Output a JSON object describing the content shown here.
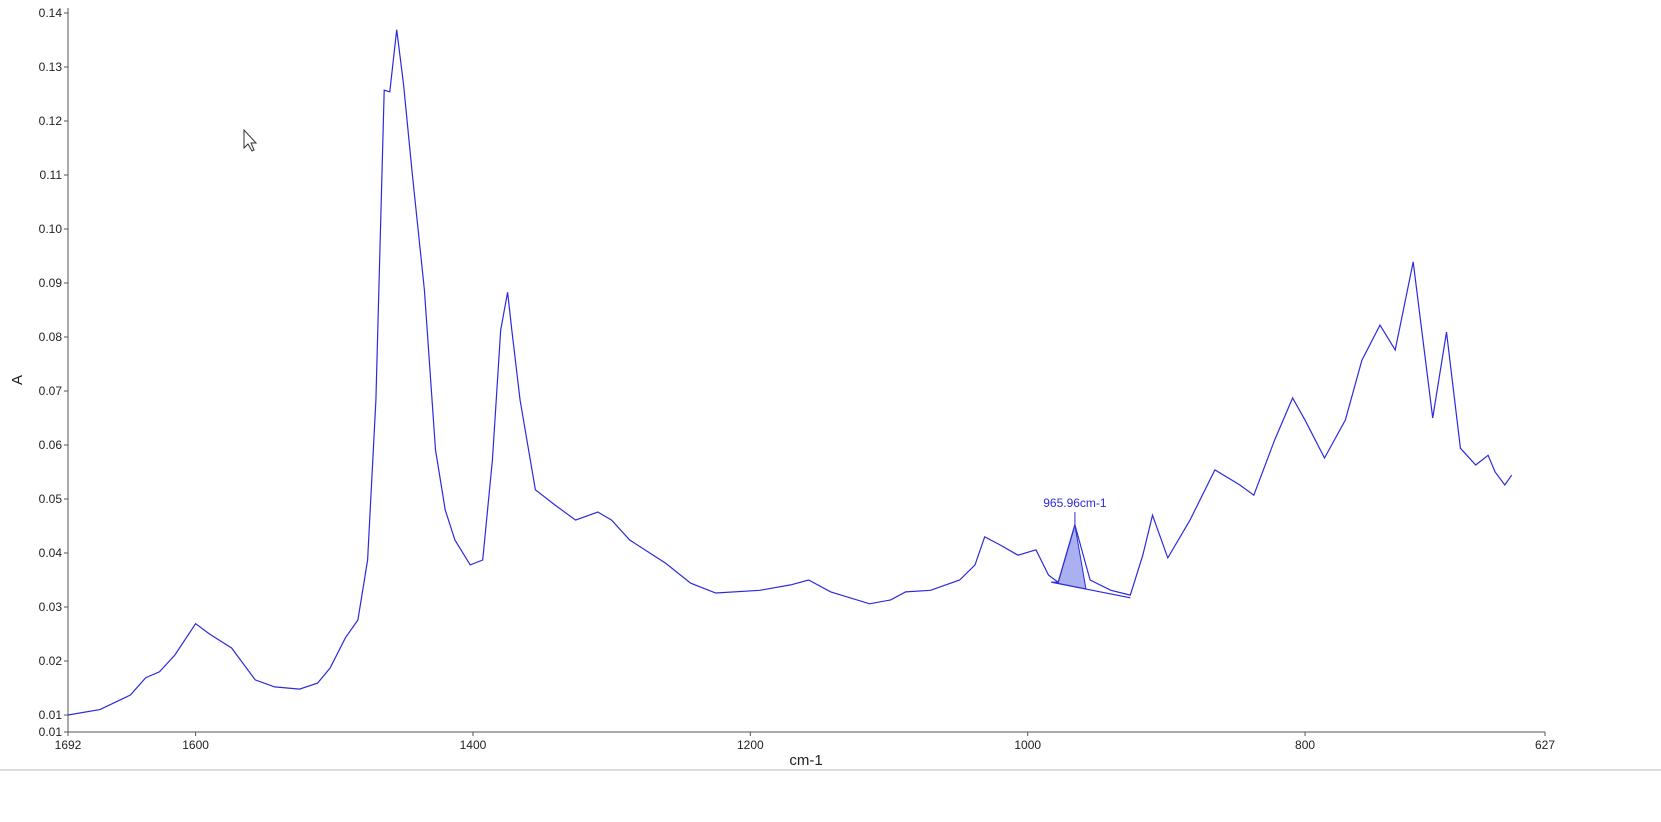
{
  "chart_data": {
    "type": "line",
    "x_label": "cm-1",
    "y_label": "A",
    "color": "#2b2bdc",
    "x": [
      1692,
      1669,
      1647,
      1636,
      1626,
      1615,
      1600,
      1590,
      1574,
      1557,
      1543,
      1525,
      1512,
      1503,
      1492,
      1483,
      1476,
      1470,
      1464,
      1460,
      1455,
      1450,
      1444,
      1435,
      1427,
      1420,
      1413,
      1402,
      1393,
      1386,
      1380,
      1375,
      1372,
      1366,
      1355,
      1341,
      1326,
      1310,
      1300,
      1287,
      1261,
      1243,
      1225,
      1193,
      1171,
      1158,
      1142,
      1114,
      1099,
      1088,
      1070,
      1049,
      1038,
      1031,
      1020,
      1007,
      994,
      985,
      978,
      966,
      955,
      940,
      926,
      917,
      910,
      899,
      883,
      865,
      847,
      837,
      822,
      809,
      800,
      786,
      771,
      759,
      746,
      735,
      722,
      708,
      698,
      688,
      677,
      668,
      663,
      656,
      651
    ],
    "values": [
      0.01,
      0.011,
      0.0137,
      0.0169,
      0.018,
      0.0211,
      0.0269,
      0.025,
      0.0224,
      0.0165,
      0.0152,
      0.0148,
      0.0159,
      0.0187,
      0.0243,
      0.0276,
      0.0387,
      0.0683,
      0.1257,
      0.1254,
      0.1369,
      0.1267,
      0.1109,
      0.0887,
      0.0591,
      0.048,
      0.0424,
      0.0378,
      0.0387,
      0.0572,
      0.0813,
      0.0883,
      0.0813,
      0.0683,
      0.0517,
      0.0489,
      0.0461,
      0.0476,
      0.0461,
      0.0424,
      0.0381,
      0.0344,
      0.0326,
      0.0331,
      0.0341,
      0.035,
      0.0328,
      0.0306,
      0.0313,
      0.0328,
      0.0331,
      0.035,
      0.0378,
      0.043,
      0.0415,
      0.0396,
      0.0406,
      0.0359,
      0.0346,
      0.0452,
      0.035,
      0.0331,
      0.0322,
      0.0396,
      0.047,
      0.0391,
      0.0461,
      0.0554,
      0.0526,
      0.0507,
      0.0609,
      0.0687,
      0.0646,
      0.0576,
      0.0646,
      0.0757,
      0.0822,
      0.0776,
      0.0939,
      0.065,
      0.0809,
      0.0594,
      0.0563,
      0.0581,
      0.055,
      0.0526,
      0.0544
    ],
    "xlim": [
      1692,
      627
    ],
    "ylim": [
      0.00685,
      0.14
    ],
    "xticks": [
      1692,
      1600,
      1400,
      1200,
      1000,
      800,
      627
    ],
    "yticks": [
      0.14,
      0.13,
      0.12,
      0.11,
      {
        "value": 0.1,
        "label": "0.10"
      },
      0.09,
      0.08,
      0.07,
      0.06,
      0.05,
      0.04,
      0.03,
      0.02,
      0.01,
      {
        "value": 0.00685,
        "label": "0.01"
      }
    ],
    "annotation": {
      "text": "965.96cm-1",
      "x": 965.96,
      "baseline_x": [
        983,
        926
      ],
      "baseline_y": [
        0.0346,
        0.0317
      ]
    }
  }
}
